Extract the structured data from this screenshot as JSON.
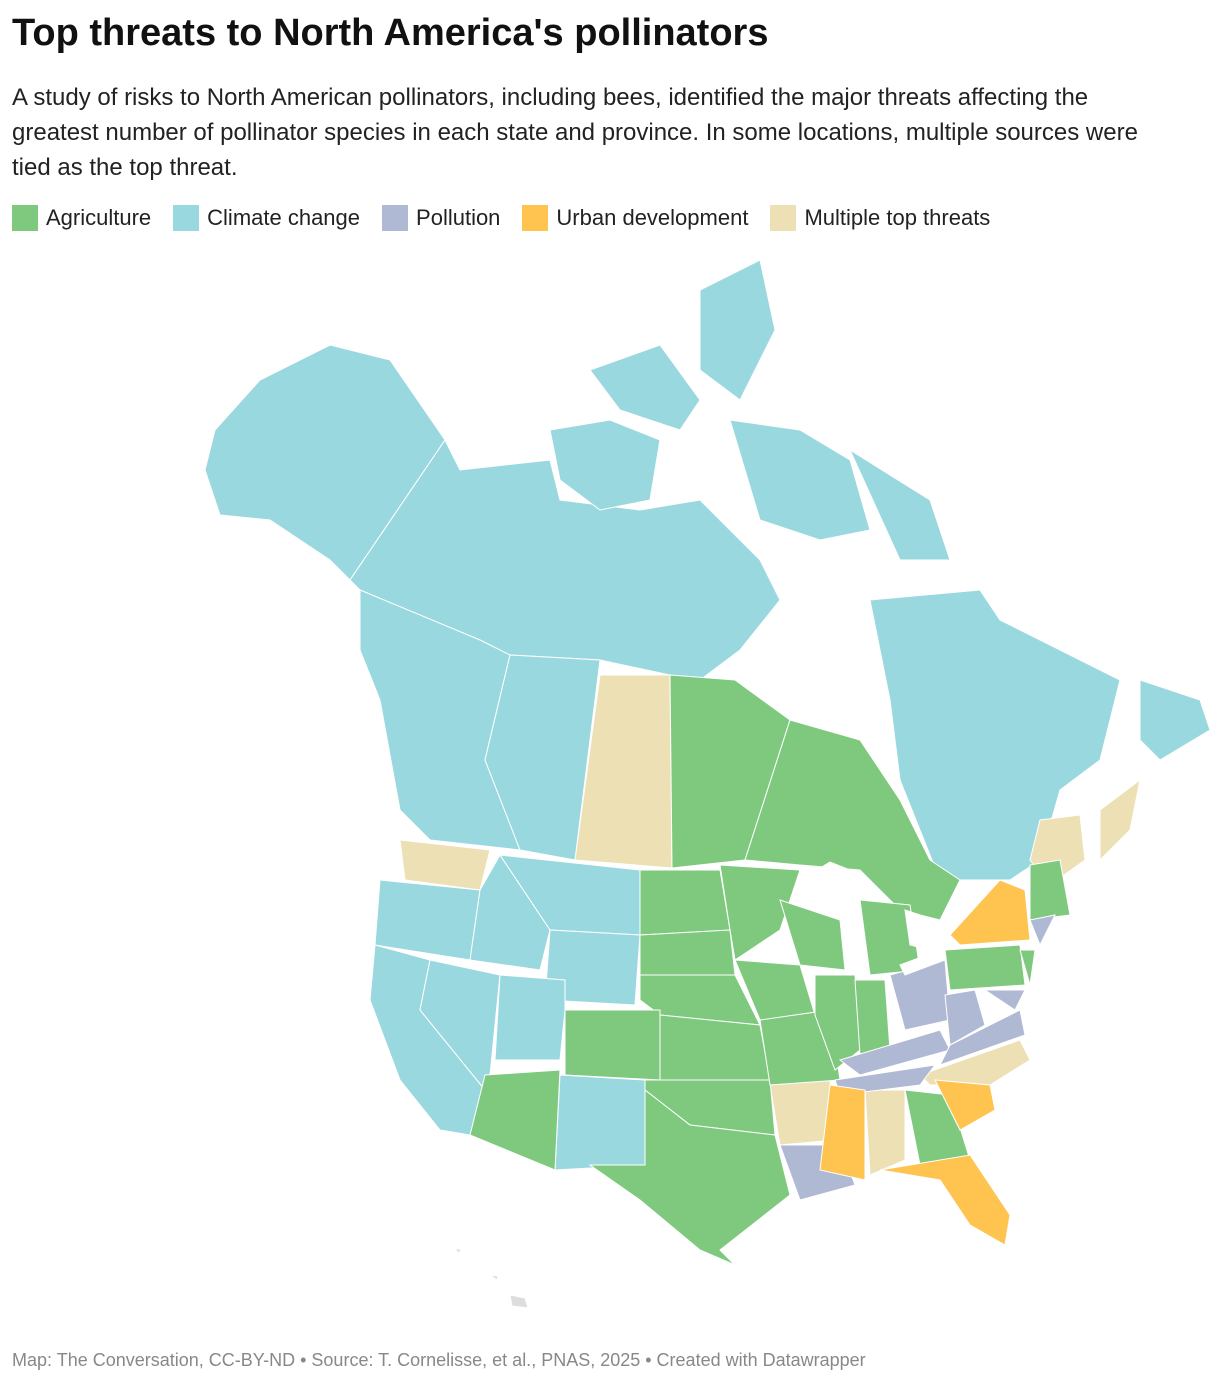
{
  "header": {
    "title": "Top threats to North America's pollinators",
    "description": "A study of risks to North American pollinators, including bees, identified the major threats affecting the greatest number of pollinator species in each state and province. In some locations, multiple sources were tied as the top threat."
  },
  "legend": [
    {
      "label": "Agriculture",
      "color": "#7fc97f"
    },
    {
      "label": "Climate change",
      "color": "#9ad8e0"
    },
    {
      "label": "Pollution",
      "color": "#b0b9d4"
    },
    {
      "label": "Urban development",
      "color": "#fec44f"
    },
    {
      "label": "Multiple top threats",
      "color": "#ede0b4"
    }
  ],
  "footer": "Map: The Conversation, CC-BY-ND • Source: T. Cornelisse, et al., PNAS, 2025 • Created with Datawrapper"
}
